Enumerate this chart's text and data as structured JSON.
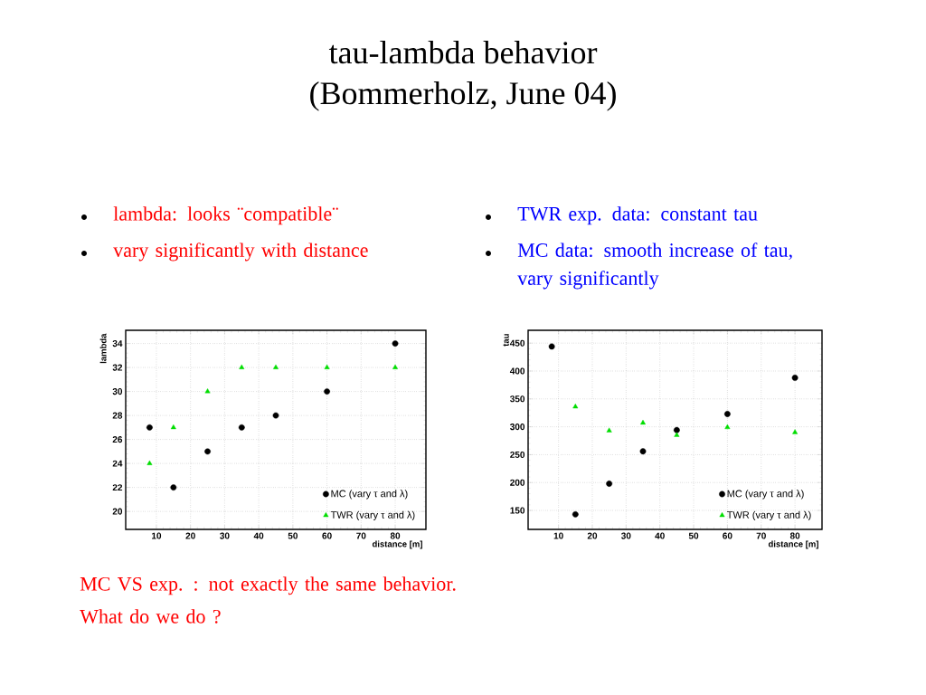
{
  "chart_data": [
    {
      "type": "scatter",
      "title": "tau-lambda behavior",
      "subtitle": "(Bommerholz, June 04)",
      "xlabel": "distance [m]",
      "ylabel": "lambda",
      "annotations": [
        "lambda: looks ¨compatible¨",
        "vary significantly with distance",
        "MC VS exp. : not exactly the same behavior. What do we do ?"
      ],
      "xlim": [
        1,
        89
      ],
      "ylim": [
        18.5,
        35.1
      ],
      "xticks": [
        10,
        20,
        30,
        40,
        50,
        60,
        70,
        80
      ],
      "yticks": [
        20,
        22,
        24,
        26,
        28,
        30,
        32,
        34
      ],
      "grid": true,
      "legend": "bottom right",
      "series": [
        {
          "name": "MC (vary τ and λ)",
          "color": "#000000",
          "marker": "circle",
          "x": [
            8,
            15,
            25,
            35,
            45,
            60,
            80
          ],
          "values": [
            27,
            22,
            25,
            27,
            28,
            30,
            34
          ]
        },
        {
          "name": "TWR (vary τ and λ)",
          "color": "#00dd00",
          "marker": "triangle",
          "x": [
            8,
            15,
            25,
            35,
            45,
            60,
            80
          ],
          "values": [
            24,
            27,
            30,
            32,
            32,
            32,
            32
          ]
        }
      ]
    },
    {
      "type": "scatter",
      "xlabel": "distance [m]",
      "ylabel": "tau",
      "annotations": [
        "TWR exp. data: constant tau",
        "MC data: smooth increase of tau, vary significantly"
      ],
      "xlim": [
        1,
        88
      ],
      "ylim": [
        116,
        473
      ],
      "xticks": [
        10,
        20,
        30,
        40,
        50,
        60,
        70,
        80
      ],
      "yticks": [
        150,
        200,
        250,
        300,
        350,
        400,
        450
      ],
      "grid": true,
      "legend": "bottom right",
      "series": [
        {
          "name": "MC (vary τ and λ)",
          "color": "#000000",
          "marker": "circle",
          "x": [
            8,
            15,
            25,
            35,
            45,
            60,
            80
          ],
          "values": [
            444,
            143,
            198,
            256,
            294,
            323,
            388
          ]
        },
        {
          "name": "TWR (vary τ and λ)",
          "color": "#00dd00",
          "marker": "triangle",
          "x": [
            15,
            25,
            35,
            45,
            60,
            80
          ],
          "values": [
            336,
            293,
            307,
            285,
            299,
            290
          ]
        }
      ]
    }
  ]
}
